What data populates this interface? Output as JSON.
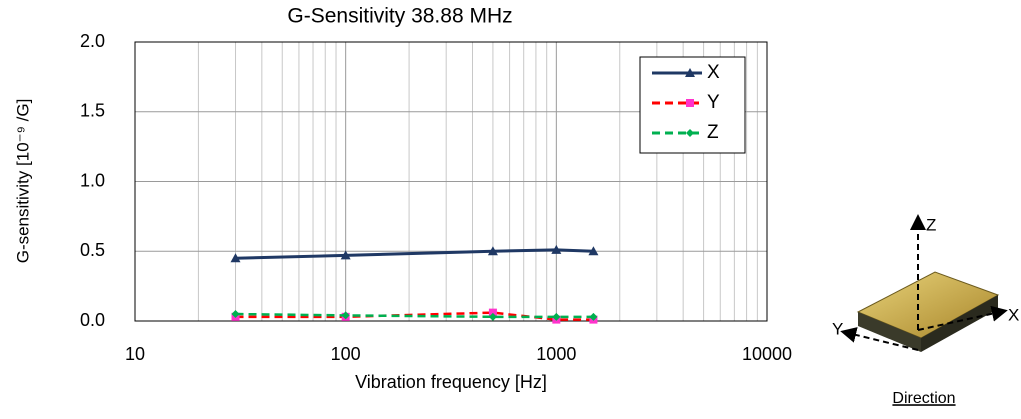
{
  "chart_data": {
    "type": "line",
    "title": "G-Sensitivity 38.88 MHz",
    "x_label": "Vibration frequency [Hz]",
    "y_label": "G-sensitivity [10⁻⁹ /G]",
    "x": [
      30,
      100,
      500,
      1000,
      1500
    ],
    "series": [
      {
        "name": "X",
        "color": "#1f3864",
        "marker": "triangle",
        "dash": false,
        "values": [
          0.45,
          0.47,
          0.5,
          0.51,
          0.5
        ]
      },
      {
        "name": "Y",
        "color": "#ff0000",
        "marker_color": "#ff33cc",
        "marker": "square",
        "dash": true,
        "values": [
          0.03,
          0.03,
          0.06,
          0.01,
          0.01
        ]
      },
      {
        "name": "Z",
        "color": "#00b050",
        "marker": "diamond",
        "dash": true,
        "values": [
          0.05,
          0.04,
          0.03,
          0.03,
          0.03
        ]
      }
    ],
    "xscale": "log",
    "xlim": [
      10,
      10000
    ],
    "xticks": [
      10,
      100,
      1000,
      10000
    ],
    "ylim": [
      0,
      2
    ],
    "yticks": [
      {
        "value": 0,
        "label": "0.0"
      },
      {
        "value": 0.5,
        "label": "0.5"
      },
      {
        "value": 1,
        "label": "1.0"
      },
      {
        "value": 1.5,
        "label": "1.5"
      },
      {
        "value": 2,
        "label": "2.0"
      }
    ],
    "grid": true,
    "legend": "upper right"
  },
  "direction_diagram": {
    "axes": [
      "Z",
      "Y",
      "X"
    ],
    "caption": "Direction"
  }
}
